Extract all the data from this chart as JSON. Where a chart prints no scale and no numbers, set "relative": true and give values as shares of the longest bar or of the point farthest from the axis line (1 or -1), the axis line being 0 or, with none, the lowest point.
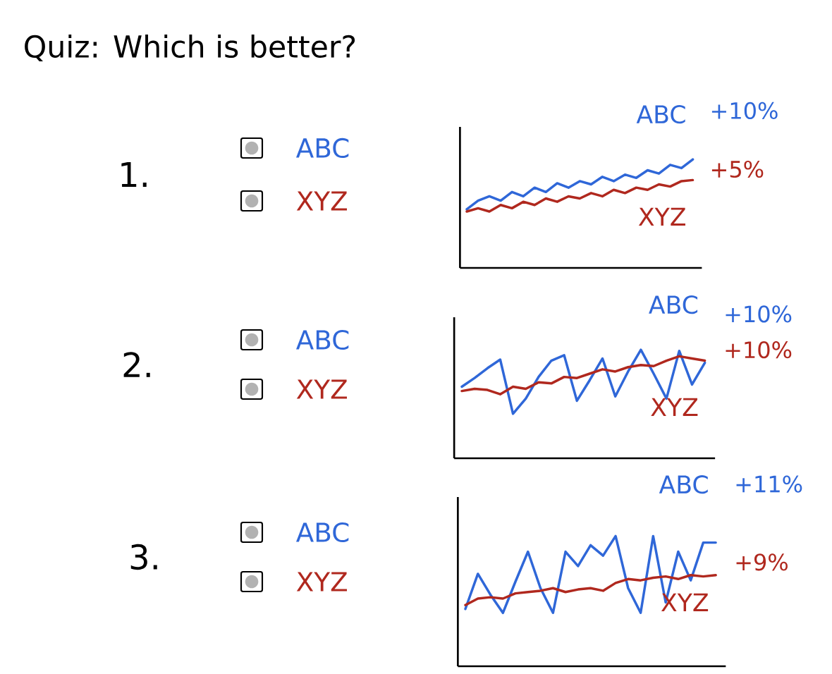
{
  "chart_data": [
    {
      "type": "other",
      "title": "Quiz: Which is better?"
    },
    {
      "type": "other",
      "title": "1.",
      "categories": [
        "ABC",
        "XYZ"
      ],
      "colors": [
        "#2f67d8",
        "#b0281e"
      ]
    },
    {
      "type": "line",
      "relative": true,
      "categories": [
        null,
        null,
        null,
        null,
        null,
        null,
        null,
        null,
        null,
        null,
        null,
        null,
        null,
        null,
        null,
        null,
        null,
        null,
        null,
        null,
        null
      ],
      "series": [
        {
          "name": "ABC",
          "color": "#2f67d8",
          "values": [
            0.54,
            0.62,
            0.66,
            0.62,
            0.7,
            0.66,
            0.74,
            0.7,
            0.78,
            0.74,
            0.8,
            0.77,
            0.84,
            0.8,
            0.86,
            0.83,
            0.9,
            0.87,
            0.95,
            0.92,
            1.0
          ]
        },
        {
          "name": "XYZ",
          "color": "#b0281e",
          "values": [
            0.52,
            0.55,
            0.52,
            0.58,
            0.55,
            0.61,
            0.58,
            0.64,
            0.61,
            0.66,
            0.64,
            0.69,
            0.66,
            0.72,
            0.69,
            0.74,
            0.72,
            0.77,
            0.75,
            0.8,
            0.81
          ]
        }
      ],
      "annotations": [
        "+10%",
        "+5%"
      ]
    },
    {
      "type": "other",
      "title": "2.",
      "categories": [
        "ABC",
        "XYZ"
      ],
      "colors": [
        "#2f67d8",
        "#b0281e"
      ]
    },
    {
      "type": "line",
      "relative": true,
      "categories": [
        null,
        null,
        null,
        null,
        null,
        null,
        null,
        null,
        null,
        null,
        null,
        null,
        null,
        null,
        null,
        null,
        null,
        null,
        null,
        null
      ],
      "series": [
        {
          "name": "ABC",
          "color": "#2f67d8",
          "values": [
            0.66,
            0.74,
            0.83,
            0.91,
            0.41,
            0.55,
            0.75,
            0.9,
            0.95,
            0.53,
            0.72,
            0.92,
            0.57,
            0.8,
            1.0,
            0.78,
            0.55,
            0.99,
            0.68,
            0.88
          ]
        },
        {
          "name": "XYZ",
          "color": "#b0281e",
          "values": [
            0.62,
            0.64,
            0.63,
            0.59,
            0.66,
            0.64,
            0.7,
            0.69,
            0.75,
            0.74,
            0.78,
            0.82,
            0.8,
            0.84,
            0.86,
            0.85,
            0.9,
            0.94,
            0.92,
            0.9
          ]
        }
      ],
      "annotations": [
        "+10%",
        "+10%"
      ]
    },
    {
      "type": "other",
      "title": "3.",
      "categories": [
        "ABC",
        "XYZ"
      ],
      "colors": [
        "#2f67d8",
        "#b0281e"
      ]
    },
    {
      "type": "line",
      "relative": true,
      "categories": [
        null,
        null,
        null,
        null,
        null,
        null,
        null,
        null,
        null,
        null,
        null,
        null,
        null,
        null,
        null,
        null,
        null,
        null,
        null,
        null,
        null
      ],
      "series": [
        {
          "name": "ABC",
          "color": "#2f67d8",
          "values": [
            0.44,
            0.71,
            0.55,
            0.41,
            0.65,
            0.88,
            0.6,
            0.41,
            0.88,
            0.77,
            0.93,
            0.85,
            1.0,
            0.6,
            0.41,
            1.0,
            0.49,
            0.88,
            0.66,
            0.95,
            0.95
          ]
        },
        {
          "name": "XYZ",
          "color": "#b0281e",
          "values": [
            0.47,
            0.52,
            0.53,
            0.52,
            0.56,
            0.57,
            0.58,
            0.6,
            0.57,
            0.59,
            0.6,
            0.58,
            0.64,
            0.67,
            0.66,
            0.68,
            0.69,
            0.67,
            0.7,
            0.69,
            0.7
          ]
        }
      ],
      "annotations": [
        "+11%",
        "+9%"
      ]
    }
  ]
}
